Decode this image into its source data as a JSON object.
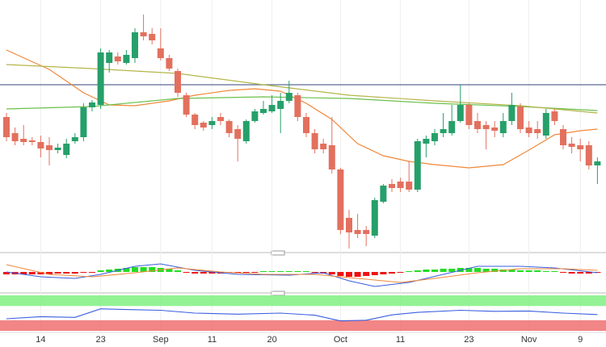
{
  "chart_data": {
    "type": "candlestick",
    "categories": [
      null,
      null,
      null,
      null,
      "14",
      null,
      null,
      null,
      null,
      null,
      null,
      "23",
      null,
      null,
      null,
      null,
      null,
      null,
      "Sep",
      null,
      null,
      null,
      null,
      null,
      "11",
      null,
      null,
      null,
      null,
      null,
      null,
      "20",
      null,
      null,
      null,
      null,
      null,
      null,
      null,
      "Oct",
      null,
      null,
      null,
      null,
      null,
      null,
      "11",
      null,
      null,
      null,
      null,
      null,
      null,
      null,
      "23",
      null,
      null,
      null,
      null,
      null,
      null,
      "Nov",
      null,
      null,
      null,
      null,
      null,
      "9",
      null,
      null
    ],
    "open": [
      155,
      135,
      128,
      126,
      124,
      120,
      114,
      108,
      125,
      130,
      167,
      170,
      222,
      230,
      222,
      228,
      260,
      258,
      240,
      228,
      212,
      182,
      158,
      148,
      145,
      155,
      150,
      140,
      125,
      150,
      160,
      162,
      165,
      175,
      182,
      155,
      135,
      122,
      120,
      90,
      30,
      15,
      15,
      8,
      50,
      72,
      75,
      75,
      65,
      122,
      125,
      135,
      135,
      150,
      170,
      150,
      145,
      142,
      135,
      150,
      168,
      142,
      140,
      132,
      162,
      140,
      122,
      120,
      120,
      95
    ],
    "high": [
      160,
      142,
      145,
      130,
      132,
      130,
      122,
      128,
      135,
      172,
      176,
      240,
      238,
      235,
      238,
      265,
      282,
      265,
      265,
      232,
      215,
      185,
      160,
      150,
      155,
      160,
      152,
      145,
      152,
      165,
      175,
      182,
      185,
      200,
      185,
      160,
      140,
      128,
      155,
      92,
      40,
      35,
      20,
      55,
      72,
      78,
      80,
      100,
      128,
      132,
      140,
      160,
      170,
      195,
      172,
      160,
      150,
      150,
      160,
      185,
      172,
      150,
      150,
      165,
      165,
      145,
      130,
      128,
      125,
      105
    ],
    "low": [
      125,
      120,
      120,
      120,
      105,
      95,
      110,
      104,
      122,
      125,
      162,
      165,
      210,
      220,
      220,
      222,
      250,
      245,
      225,
      212,
      180,
      155,
      140,
      138,
      140,
      145,
      130,
      100,
      122,
      148,
      158,
      160,
      135,
      172,
      150,
      130,
      110,
      110,
      85,
      10,
      -8,
      5,
      -5,
      5,
      48,
      62,
      62,
      62,
      62,
      105,
      120,
      130,
      132,
      148,
      140,
      135,
      115,
      130,
      130,
      145,
      135,
      130,
      128,
      128,
      145,
      115,
      110,
      100,
      90,
      72
    ],
    "close": [
      130,
      125,
      124,
      124,
      116,
      114,
      117,
      122,
      130,
      167,
      173,
      235,
      235,
      224,
      232,
      260,
      255,
      250,
      228,
      215,
      185,
      158,
      145,
      142,
      150,
      150,
      135,
      128,
      150,
      162,
      165,
      170,
      175,
      185,
      155,
      135,
      115,
      115,
      90,
      15,
      12,
      10,
      10,
      52,
      70,
      67,
      67,
      65,
      125,
      128,
      135,
      140,
      150,
      170,
      145,
      140,
      140,
      138,
      150,
      170,
      140,
      135,
      135,
      160,
      150,
      120,
      118,
      115,
      95,
      100
    ],
    "up_color": "#26a06a",
    "down_color": "#e3705e",
    "ylim": [
      -10,
      300
    ],
    "hline": 195,
    "hline_color": "#5c6b94",
    "lines": [
      {
        "color": "#f0883a",
        "x": [
          0,
          5,
          9,
          12,
          15,
          19,
          22,
          26,
          29,
          32,
          35,
          38,
          41,
          44,
          47,
          50,
          54,
          58,
          61,
          64,
          67,
          69
        ],
        "values": [
          238,
          214,
          185,
          170,
          169,
          175,
          182,
          188,
          190,
          187,
          172,
          152,
          122,
          107,
          100,
          96,
          92,
          96,
          114,
          133,
          138,
          140
        ]
      },
      {
        "color": "#6cc04a",
        "x": [
          0,
          10,
          20,
          30,
          40,
          50,
          60,
          69
        ],
        "values": [
          165,
          168,
          178,
          180,
          178,
          172,
          168,
          163
        ]
      },
      {
        "color": "#b4b54a",
        "x": [
          0,
          10,
          20,
          30,
          40,
          50,
          60,
          69
        ],
        "values": [
          220,
          215,
          209,
          195,
          182,
          175,
          169,
          160
        ]
      }
    ],
    "macd": {
      "ylim": [
        -21,
        19
      ],
      "up_color": "#22dd22",
      "down_color": "#ee1111",
      "histogram": [
        -3,
        -3,
        -3,
        -3,
        -3,
        -3,
        -2,
        -2,
        -2,
        -1,
        -1,
        2,
        3,
        4,
        5,
        6,
        6,
        6,
        5,
        4,
        2,
        -1,
        -2,
        -2,
        -2,
        -2,
        -1,
        -1,
        -1,
        -1,
        1,
        1,
        1,
        1,
        1,
        1,
        -1,
        -2,
        -3,
        -5,
        -6,
        -6,
        -5,
        -4,
        -3,
        -2,
        -1,
        1,
        2,
        3,
        3,
        4,
        4,
        5,
        5,
        5,
        4,
        4,
        3,
        3,
        2,
        2,
        2,
        1,
        1,
        -1,
        -2,
        -2,
        -2,
        -1
      ],
      "lines": [
        {
          "color": "#3a5ee0",
          "x": [
            0,
            4,
            8,
            11,
            15,
            18,
            22,
            27,
            33,
            37,
            40,
            43,
            47,
            51,
            55,
            60,
            64,
            69
          ],
          "values": [
            0,
            -6,
            -8,
            -3,
            7,
            10,
            2,
            -3,
            -4,
            -1,
            -11,
            -18,
            -13,
            -3,
            7,
            7,
            5,
            -1
          ]
        },
        {
          "color": "#f0883a",
          "x": [
            0,
            5,
            10,
            15,
            20,
            25,
            30,
            36,
            41,
            46,
            50,
            55,
            60,
            65,
            69
          ],
          "values": [
            9,
            -3,
            -6,
            -1,
            5,
            0,
            -3,
            -3,
            -8,
            -13,
            -8,
            -1,
            4,
            4,
            2
          ]
        }
      ]
    },
    "rsi": {
      "ylim": [
        0,
        100
      ],
      "bands": [
        {
          "range": [
            70,
            100
          ],
          "color": "#80f080"
        },
        {
          "range": [
            0,
            30
          ],
          "color": "#f07070"
        }
      ],
      "line": {
        "color": "#3a5ee0",
        "x": [
          0,
          4,
          8,
          11,
          14,
          18,
          22,
          27,
          32,
          36,
          39,
          42,
          45,
          48,
          53,
          57,
          61,
          65,
          69
        ],
        "values": [
          34,
          40,
          38,
          62,
          60,
          58,
          50,
          47,
          50,
          44,
          28,
          30,
          45,
          52,
          58,
          55,
          56,
          50,
          46
        ]
      }
    }
  }
}
